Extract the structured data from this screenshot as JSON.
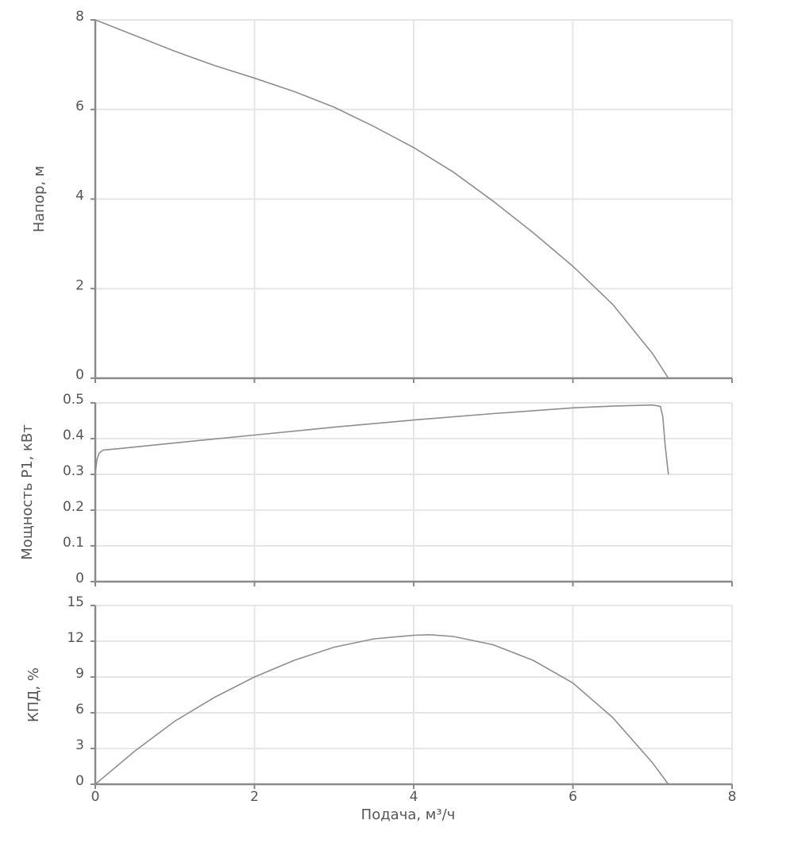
{
  "chart_data": [
    {
      "type": "line",
      "id": "head",
      "ylabel": "Напор, м",
      "xlim": [
        0,
        8
      ],
      "ylim": [
        0,
        8
      ],
      "yticks": [
        "0",
        "2",
        "4",
        "6",
        "8"
      ],
      "grid": true,
      "series": [
        {
          "x": [
            0,
            0.5,
            1,
            1.5,
            2,
            2.5,
            3,
            3.5,
            4,
            4.5,
            5,
            5.5,
            6,
            6.5,
            7,
            7.2
          ],
          "y": [
            8.0,
            7.65,
            7.3,
            6.98,
            6.7,
            6.4,
            6.05,
            5.62,
            5.15,
            4.6,
            3.95,
            3.25,
            2.5,
            1.65,
            0.55,
            0.0
          ]
        }
      ]
    },
    {
      "type": "line",
      "id": "power",
      "ylabel": "Мощность P1, кВт",
      "xlim": [
        0,
        8
      ],
      "ylim": [
        0,
        0.5
      ],
      "yticks": [
        "0",
        "0.1",
        "0.2",
        "0.3",
        "0.4",
        "0.5"
      ],
      "grid": true,
      "series": [
        {
          "x": [
            0,
            0.02,
            0.05,
            0.1,
            0.3,
            1,
            2,
            3,
            4,
            5,
            6,
            6.5,
            7,
            7.1,
            7.13,
            7.16,
            7.2
          ],
          "y": [
            0.3,
            0.34,
            0.36,
            0.368,
            0.372,
            0.388,
            0.41,
            0.432,
            0.452,
            0.47,
            0.486,
            0.491,
            0.494,
            0.49,
            0.46,
            0.38,
            0.3
          ]
        }
      ]
    },
    {
      "type": "line",
      "id": "efficiency",
      "ylabel": "КПД, %",
      "xlabel": "Подача, м³/ч",
      "xlim": [
        0,
        8
      ],
      "ylim": [
        0,
        15
      ],
      "xticks": [
        "0",
        "2",
        "4",
        "6",
        "8"
      ],
      "yticks": [
        "0",
        "3",
        "6",
        "9",
        "12",
        "15"
      ],
      "grid": true,
      "series": [
        {
          "x": [
            0,
            0.5,
            1,
            1.5,
            2,
            2.5,
            3,
            3.5,
            4,
            4.2,
            4.5,
            5,
            5.5,
            6,
            6.5,
            7,
            7.2
          ],
          "y": [
            0,
            2.8,
            5.3,
            7.3,
            9.0,
            10.4,
            11.5,
            12.2,
            12.5,
            12.55,
            12.4,
            11.7,
            10.4,
            8.5,
            5.6,
            1.8,
            0
          ]
        }
      ]
    }
  ],
  "colors": {
    "line": "#8e8e8e",
    "axis": "#8a8a8a",
    "grid": "#e6e6e6",
    "text": "#555555"
  }
}
